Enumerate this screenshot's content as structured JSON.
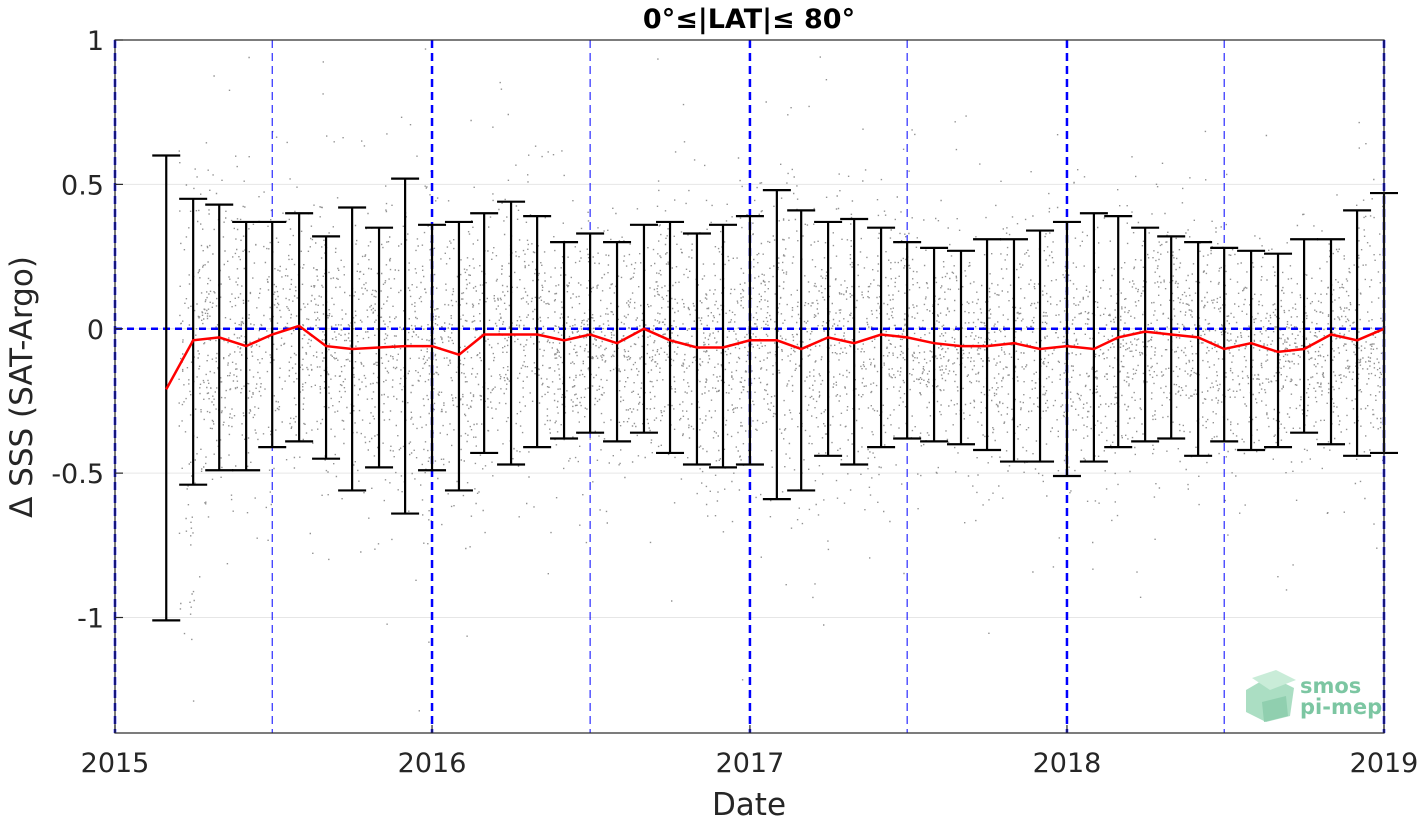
{
  "chart_data": {
    "type": "scatter",
    "title": "0°≤|LAT|≤ 80°",
    "xlabel": "Date",
    "ylabel": "Δ SSS (SAT-Argo)",
    "xlim": [
      "2015-01-01",
      "2019-01-01"
    ],
    "ylim": [
      -1.4,
      1.0
    ],
    "x_ticks": [
      "2015",
      "2016",
      "2017",
      "2018",
      "2019"
    ],
    "y_ticks": [
      "1",
      "0.5",
      "0",
      "-0.5",
      "-1"
    ],
    "grid": true,
    "colors": {
      "scatter": "#7f7f7f",
      "mean_line": "#ff0000",
      "error_bars": "#000000",
      "guides": "#0000ff",
      "logo": "#7cc6a2"
    },
    "scatter_note": "dense cloud of individual SAT-Argo differences",
    "zero_reference": 0,
    "year_guides": [
      "2015-01-01",
      "2016-01-01",
      "2017-01-01",
      "2018-01-01",
      "2019-01-01"
    ],
    "halfyear_guides": [
      "2015-07-01",
      "2016-07-01",
      "2017-07-01",
      "2018-07-01"
    ],
    "series": [
      {
        "x": [
          "2015-03",
          "2015-04",
          "2015-05",
          "2015-06",
          "2015-07",
          "2015-08",
          "2015-09",
          "2015-10",
          "2015-11",
          "2015-12",
          "2016-01",
          "2016-02",
          "2016-03",
          "2016-04",
          "2016-05",
          "2016-06",
          "2016-07",
          "2016-08",
          "2016-09",
          "2016-10",
          "2016-11",
          "2016-12",
          "2017-01",
          "2017-02",
          "2017-03",
          "2017-04",
          "2017-05",
          "2017-06",
          "2017-07",
          "2017-08",
          "2017-09",
          "2017-10",
          "2017-11",
          "2017-12",
          "2018-01",
          "2018-02",
          "2018-03",
          "2018-04",
          "2018-05",
          "2018-06",
          "2018-07",
          "2018-08",
          "2018-09",
          "2018-10",
          "2018-11",
          "2018-12",
          "2019-01"
        ],
        "mean": [
          -0.21,
          -0.04,
          -0.03,
          -0.06,
          -0.02,
          0.01,
          -0.06,
          -0.07,
          -0.065,
          -0.06,
          -0.06,
          -0.09,
          -0.02,
          -0.02,
          -0.02,
          -0.04,
          -0.02,
          -0.05,
          0.0,
          -0.04,
          -0.065,
          -0.065,
          -0.04,
          -0.04,
          -0.07,
          -0.03,
          -0.05,
          -0.02,
          -0.03,
          -0.05,
          -0.06,
          -0.06,
          -0.05,
          -0.07,
          -0.06,
          -0.07,
          -0.03,
          -0.01,
          -0.02,
          -0.03,
          -0.07,
          -0.05,
          -0.08,
          -0.07,
          -0.02,
          -0.04,
          0.0
        ],
        "upper": [
          0.6,
          0.45,
          0.43,
          0.37,
          0.37,
          0.4,
          0.32,
          0.42,
          0.35,
          0.52,
          0.36,
          0.37,
          0.4,
          0.44,
          0.39,
          0.3,
          0.33,
          0.3,
          0.36,
          0.37,
          0.33,
          0.36,
          0.39,
          0.48,
          0.41,
          0.37,
          0.38,
          0.35,
          0.3,
          0.28,
          0.27,
          0.31,
          0.31,
          0.34,
          0.37,
          0.4,
          0.39,
          0.35,
          0.32,
          0.3,
          0.28,
          0.27,
          0.26,
          0.31,
          0.31,
          0.41,
          0.47
        ],
        "lower": [
          -1.01,
          -0.54,
          -0.49,
          -0.49,
          -0.41,
          -0.39,
          -0.45,
          -0.56,
          -0.48,
          -0.64,
          -0.49,
          -0.56,
          -0.43,
          -0.47,
          -0.41,
          -0.38,
          -0.36,
          -0.39,
          -0.36,
          -0.43,
          -0.47,
          -0.48,
          -0.47,
          -0.59,
          -0.56,
          -0.44,
          -0.47,
          -0.41,
          -0.38,
          -0.39,
          -0.4,
          -0.42,
          -0.46,
          -0.46,
          -0.51,
          -0.46,
          -0.41,
          -0.39,
          -0.38,
          -0.44,
          -0.39,
          -0.42,
          -0.41,
          -0.36,
          -0.4,
          -0.44,
          -0.43
        ]
      }
    ]
  },
  "logo": {
    "line1": "smos",
    "line2": "pi-mep"
  }
}
